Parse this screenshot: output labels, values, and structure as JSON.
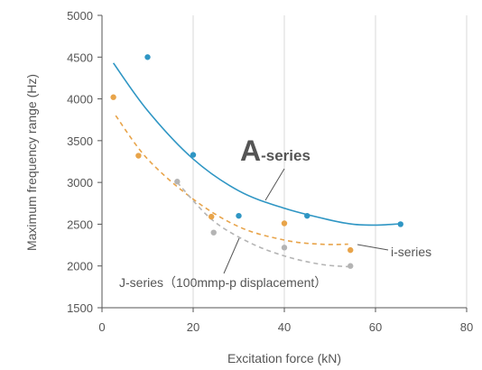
{
  "chart_data": {
    "type": "scatter",
    "xlabel": "Excitation force (kN)",
    "ylabel": "Maximum frequency range (Hz)",
    "xlim": [
      0,
      80
    ],
    "ylim": [
      1500,
      5000
    ],
    "xticks": [
      0,
      20,
      40,
      60,
      80
    ],
    "yticks": [
      1500,
      2000,
      2500,
      3000,
      3500,
      4000,
      4500,
      5000
    ],
    "grid": "vertical",
    "legend": "none",
    "series": [
      {
        "name": "A-series",
        "label_big": "A",
        "label_small": "-series",
        "color": "#2f96c4",
        "line_style": "solid",
        "points": [
          [
            10,
            4500
          ],
          [
            20,
            3330
          ],
          [
            30,
            2600
          ],
          [
            45,
            2600
          ],
          [
            65.5,
            2500
          ]
        ],
        "trend": [
          [
            2.5,
            4430
          ],
          [
            10,
            3860
          ],
          [
            20,
            3280
          ],
          [
            30,
            2900
          ],
          [
            40,
            2690
          ],
          [
            50,
            2550
          ],
          [
            55,
            2500
          ],
          [
            60,
            2490
          ],
          [
            65.5,
            2505
          ]
        ]
      },
      {
        "name": "i-series",
        "color": "#e8a44a",
        "line_style": "dashed",
        "points": [
          [
            2.5,
            4020
          ],
          [
            8,
            3320
          ],
          [
            24,
            2590
          ],
          [
            40,
            2510
          ],
          [
            54.5,
            2190
          ]
        ],
        "trend": [
          [
            3,
            3800
          ],
          [
            10,
            3280
          ],
          [
            20,
            2800
          ],
          [
            30,
            2470
          ],
          [
            40,
            2310
          ],
          [
            48,
            2260
          ],
          [
            54,
            2260
          ]
        ]
      },
      {
        "name": "J-series（100mmp-p displacement）",
        "color": "#b4b4b4",
        "line_style": "dashed",
        "points": [
          [
            16.5,
            3010
          ],
          [
            24.5,
            2400
          ],
          [
            40,
            2220
          ],
          [
            54.5,
            2000
          ]
        ],
        "trend": [
          [
            16.5,
            3000
          ],
          [
            24,
            2560
          ],
          [
            32,
            2290
          ],
          [
            40,
            2120
          ],
          [
            48,
            2020
          ],
          [
            54.5,
            1990
          ]
        ]
      }
    ]
  }
}
